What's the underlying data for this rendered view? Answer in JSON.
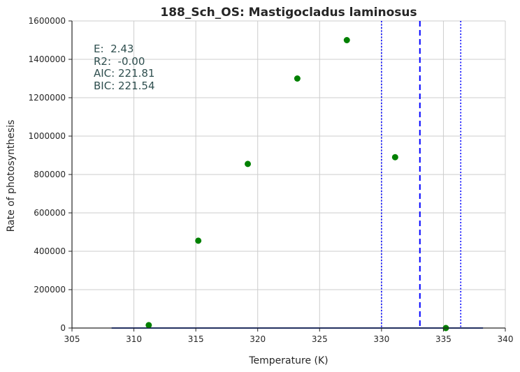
{
  "chart_data": {
    "type": "scatter",
    "title": "188_Sch_OS: Mastigocladus laminosus",
    "xlabel": "Temperature (K)",
    "ylabel": "Rate of photosynthesis",
    "xlim": [
      305,
      340
    ],
    "ylim": [
      0,
      1600000
    ],
    "xticks": [
      "305",
      "310",
      "315",
      "320",
      "325",
      "330",
      "335",
      "340"
    ],
    "yticks": [
      "0",
      "200000",
      "400000",
      "600000",
      "800000",
      "1000000",
      "1200000",
      "1400000",
      "1600000"
    ],
    "grid": true,
    "series": [
      {
        "kind": "points",
        "color": "#008000",
        "x": [
          311.2,
          315.2,
          319.2,
          323.2,
          327.2,
          331.1,
          335.2
        ],
        "y": [
          15000,
          455000,
          855000,
          1300000,
          1500000,
          890000,
          0
        ]
      },
      {
        "kind": "fit-line",
        "color": "#1f3fbf",
        "x": [
          308.2,
          338.2
        ],
        "y": [
          0,
          0
        ]
      }
    ],
    "vlines": [
      {
        "x": 333.1,
        "style": "dashed",
        "color": "#0000ff"
      },
      {
        "x": 330.0,
        "style": "dotted",
        "color": "#0000ff"
      },
      {
        "x": 336.4,
        "style": "dotted",
        "color": "#0000ff"
      }
    ],
    "annotations": [
      "E:  2.43",
      "R2:  -0.00",
      "AIC: 221.81",
      "BIC: 221.54"
    ]
  }
}
